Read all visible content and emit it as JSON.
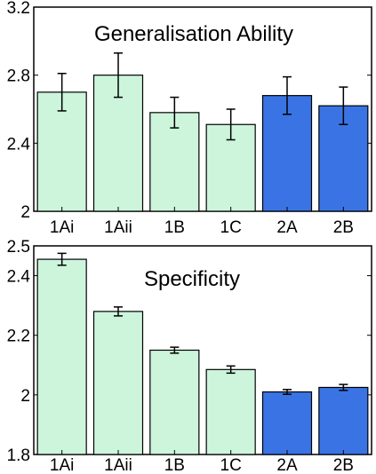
{
  "chart_data": [
    {
      "type": "bar",
      "title": "Generalisation Ability",
      "categories": [
        "1Ai",
        "1Aii",
        "1B",
        "1C",
        "2A",
        "2B"
      ],
      "values": [
        2.7,
        2.8,
        2.58,
        2.51,
        2.68,
        2.62
      ],
      "errors": [
        0.11,
        0.13,
        0.09,
        0.09,
        0.11,
        0.11
      ],
      "bar_colors": [
        "#ccf5dc",
        "#ccf5dc",
        "#ccf5dc",
        "#ccf5dc",
        "#3a74e4",
        "#3a74e4"
      ],
      "error_color": "#000000",
      "xlabel": "",
      "ylabel": "",
      "ylim": [
        2.0,
        3.2
      ],
      "yticks": [
        2.0,
        2.4,
        2.8,
        3.2
      ],
      "ytick_labels": [
        "2",
        "2.4",
        "2.8",
        "3.2"
      ],
      "grid": false,
      "legend": "none"
    },
    {
      "type": "bar",
      "title": "Specificity",
      "categories": [
        "1Ai",
        "1Aii",
        "1B",
        "1C",
        "2A",
        "2B"
      ],
      "values": [
        2.455,
        2.28,
        2.15,
        2.085,
        2.01,
        2.025
      ],
      "errors": [
        0.02,
        0.015,
        0.01,
        0.012,
        0.008,
        0.01
      ],
      "bar_colors": [
        "#ccf5dc",
        "#ccf5dc",
        "#ccf5dc",
        "#ccf5dc",
        "#3a74e4",
        "#3a74e4"
      ],
      "error_color": "#000000",
      "xlabel": "",
      "ylabel": "",
      "ylim": [
        1.8,
        2.5
      ],
      "yticks": [
        1.8,
        2.0,
        2.2,
        2.4,
        2.5
      ],
      "ytick_labels": [
        "1.8",
        "2",
        "2.2",
        "2.4",
        "2.5"
      ],
      "grid": false,
      "legend": "none"
    }
  ]
}
